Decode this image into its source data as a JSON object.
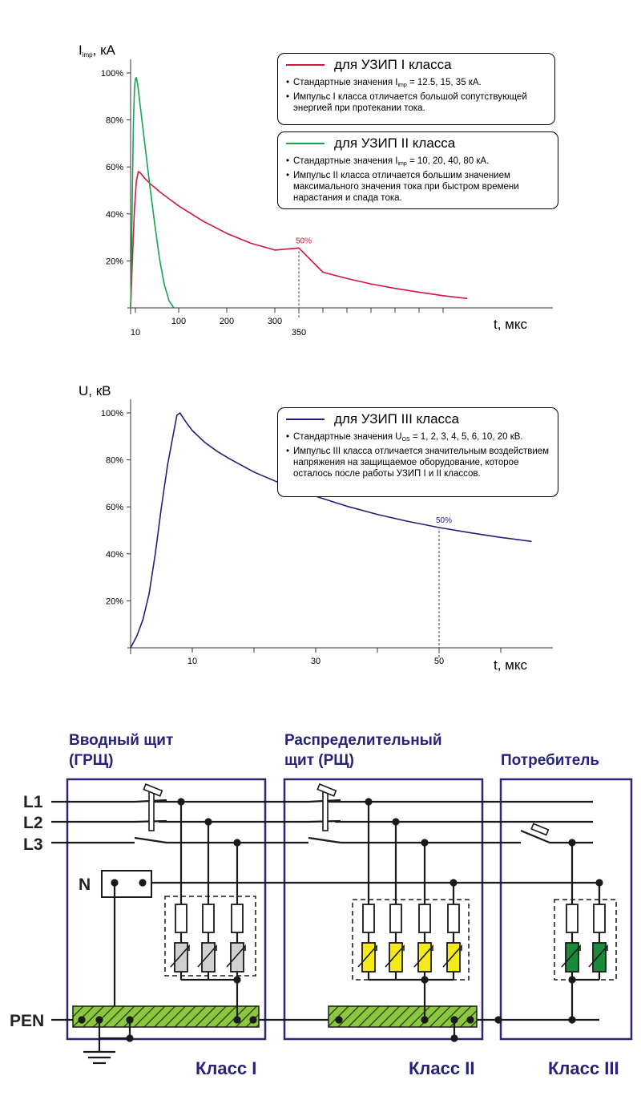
{
  "colors": {
    "class1_curve": "#d4143c",
    "class2_curve": "#1aa34a",
    "class3_curve": "#2b1a7e",
    "diagram_titles": "#27237a",
    "frame": "#2a2670",
    "spd_class2": "#f4ea1a",
    "spd_class3": "#1a8a3a",
    "spd_class1": "#d0d0d0",
    "pen_bar": "#8dc63f"
  },
  "chart_data": [
    {
      "type": "line",
      "ylabel_main": "I",
      "ylabel_sub": "imp",
      "ylabel_tail": ", кА",
      "xlabel": "t, мкс",
      "y_ticks": [
        "20%",
        "40%",
        "60%",
        "80%",
        "100%"
      ],
      "y_tick_values": [
        20,
        40,
        60,
        80,
        100
      ],
      "x_ticks": [
        "10",
        "100",
        "200",
        "300",
        "350"
      ],
      "x_tick_values": [
        10,
        100,
        200,
        300,
        350
      ],
      "annotation": "50%",
      "annotation_x": 350,
      "series": [
        {
          "name": "для УЗИП I класса",
          "x": [
            0,
            4,
            8,
            12,
            16,
            20,
            30,
            40,
            60,
            80,
            100,
            150,
            200,
            250,
            300,
            350,
            400,
            450,
            500,
            550,
            600,
            650,
            700
          ],
          "y": [
            0,
            22,
            42,
            54,
            58,
            57.5,
            55,
            53,
            49.5,
            46.4,
            43.4,
            37,
            31.7,
            27.5,
            24.6,
            25.5,
            15.2,
            12.5,
            10.2,
            8.3,
            6.7,
            5.2,
            4
          ]
        },
        {
          "name": "для УЗИП II класса",
          "x": [
            0,
            2,
            4,
            6,
            8,
            10,
            12,
            14,
            16,
            20,
            30,
            40,
            50,
            60,
            70,
            80,
            90
          ],
          "y": [
            0,
            25,
            55,
            80,
            93,
            97.5,
            98,
            96,
            93,
            86,
            69,
            52,
            36,
            21,
            10,
            3,
            0
          ]
        }
      ],
      "legend": [
        {
          "title": "для УЗИП I класса",
          "item1_pre": "Стандартные значения I",
          "item1_sub": "imp",
          "item1_post": " = 12.5, 15, 35 кА.",
          "item2": "Импульс I класса отличается большой сопутствующей энергией при протекании тока."
        },
        {
          "title": "для УЗИП II класса",
          "item1_pre": "Стандартные значения I",
          "item1_sub": "imp",
          "item1_post": " = 10, 20, 40, 80 кА.",
          "item2": "Импульс II класса отличается большим значением максимального значения тока при быстром времени нарастания и спада тока."
        }
      ]
    },
    {
      "type": "line",
      "ylabel": "U, кВ",
      "xlabel": "t, мкс",
      "y_ticks": [
        "20%",
        "40%",
        "60%",
        "80%",
        "100%"
      ],
      "y_tick_values": [
        20,
        40,
        60,
        80,
        100
      ],
      "x_ticks": [
        "10",
        "30",
        "50"
      ],
      "x_tick_values": [
        10,
        30,
        50
      ],
      "annotation": "50%",
      "annotation_x": 50,
      "series": [
        {
          "name": "для УЗИП III класса",
          "x": [
            0,
            1,
            2,
            3,
            4,
            5,
            6,
            7,
            7.5,
            8,
            9,
            10,
            12,
            14,
            16,
            20,
            25,
            30,
            35,
            40,
            45,
            50,
            55,
            60,
            65
          ],
          "y": [
            0,
            5,
            12,
            23,
            40,
            60,
            78,
            92,
            99,
            100,
            96,
            92.5,
            87.5,
            83.7,
            80.5,
            74.8,
            69.2,
            64.5,
            60.3,
            56.8,
            53.8,
            51.2,
            49,
            47,
            45.3
          ]
        }
      ],
      "legend": [
        {
          "title": "для УЗИП III класса",
          "item1_pre": "Стандартные значения U",
          "item1_sub": "OS",
          "item1_post": " = 1, 2, 3, 4, 5, 6, 10, 20 кВ.",
          "item2": "Импульс III класса отличается значительным воздействием напряжения на защищаемое оборудование, которое осталось после работы УЗИП I и II классов."
        }
      ]
    }
  ],
  "diagram": {
    "sections": [
      {
        "title_line1": "Вводный щит",
        "title_line2": "(ГРЩ)",
        "class_label": "Класс I"
      },
      {
        "title_line1": "Распределительный",
        "title_line2": "щит (РЩ)",
        "class_label": "Класс II"
      },
      {
        "title_line1": "Потребитель",
        "title_line2": "",
        "class_label": "Класс III"
      }
    ],
    "conductors": [
      "L1",
      "L2",
      "L3",
      "N",
      "PEN"
    ]
  }
}
